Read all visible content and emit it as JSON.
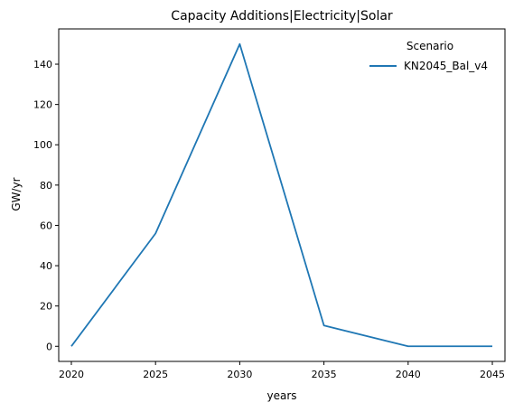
{
  "chart_data": {
    "type": "line",
    "title": "Capacity Additions|Electricity|Solar",
    "xlabel": "years",
    "ylabel": "GW/yr",
    "x": [
      2020,
      2025,
      2030,
      2035,
      2040,
      2045
    ],
    "xticks": [
      "2020",
      "2025",
      "2030",
      "2035",
      "2040",
      "2045"
    ],
    "yticks": [
      "0",
      "20",
      "40",
      "60",
      "80",
      "100",
      "120",
      "140"
    ],
    "xlim": [
      2019.25,
      2045.75
    ],
    "ylim": [
      -7.5,
      157.5
    ],
    "grid": false,
    "legend": {
      "title": "Scenario",
      "placement": "top-right"
    },
    "series": [
      {
        "name": "KN2045_Bal_v4",
        "color": "#1f77b4",
        "values": [
          0,
          56,
          150,
          10.3,
          0,
          0
        ]
      }
    ]
  }
}
